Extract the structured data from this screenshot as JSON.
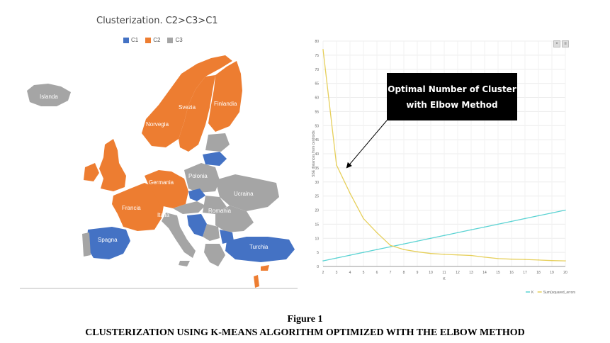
{
  "map": {
    "title": "Clusterization. C2>C3>C1",
    "legend": [
      {
        "label": "C1",
        "color": "#4472c4"
      },
      {
        "label": "C2",
        "color": "#ed7d31"
      },
      {
        "label": "C3",
        "color": "#a5a5a5"
      }
    ],
    "country_labels": {
      "islanda": "Islanda",
      "norvegia": "Norvegia",
      "svezia": "Svezia",
      "finlandia": "Finlandia",
      "polonia": "Polonia",
      "germania": "Germania",
      "ucraina": "Ucraina",
      "francia": "Francia",
      "italia": "Italia",
      "romania": "Romania",
      "spagna": "Spagna",
      "turchia": "Turchia"
    }
  },
  "callout": {
    "line1": "Optimal Number of Cluster",
    "line2": "with Elbow Method"
  },
  "corner_icons": [
    "×",
    "≡"
  ],
  "chart_data": {
    "type": "line",
    "xlabel": "K",
    "ylabel": "SSE distances from centroids",
    "x": [
      2,
      3,
      4,
      5,
      6,
      7,
      8,
      9,
      10,
      11,
      12,
      13,
      14,
      15,
      16,
      17,
      18,
      19,
      20
    ],
    "ylim": [
      0,
      80
    ],
    "yticks": [
      0,
      5,
      10,
      15,
      20,
      25,
      30,
      35,
      40,
      45,
      50,
      55,
      60,
      65,
      70,
      75,
      80
    ],
    "grid": true,
    "legend_position": "bottom-right",
    "series": [
      {
        "name": "K",
        "color": "#5bd3d3",
        "values": [
          2,
          3,
          4,
          5,
          6,
          7,
          8,
          9,
          10,
          11,
          12,
          13,
          14,
          15,
          16,
          17,
          18,
          19,
          20
        ]
      },
      {
        "name": "Sum(squared_errors)",
        "color": "#e6cf5a",
        "values": [
          77,
          36,
          26,
          17,
          12,
          7.5,
          6,
          5.2,
          4.6,
          4.3,
          4.1,
          3.9,
          3.3,
          2.8,
          2.6,
          2.5,
          2.3,
          2.1,
          2.0
        ]
      }
    ]
  },
  "caption": {
    "figure_number": "Figure 1",
    "title": "CLUSTERIZATION USING K-MEANS ALGORITHM OPTIMIZED WITH THE ELBOW METHOD"
  }
}
